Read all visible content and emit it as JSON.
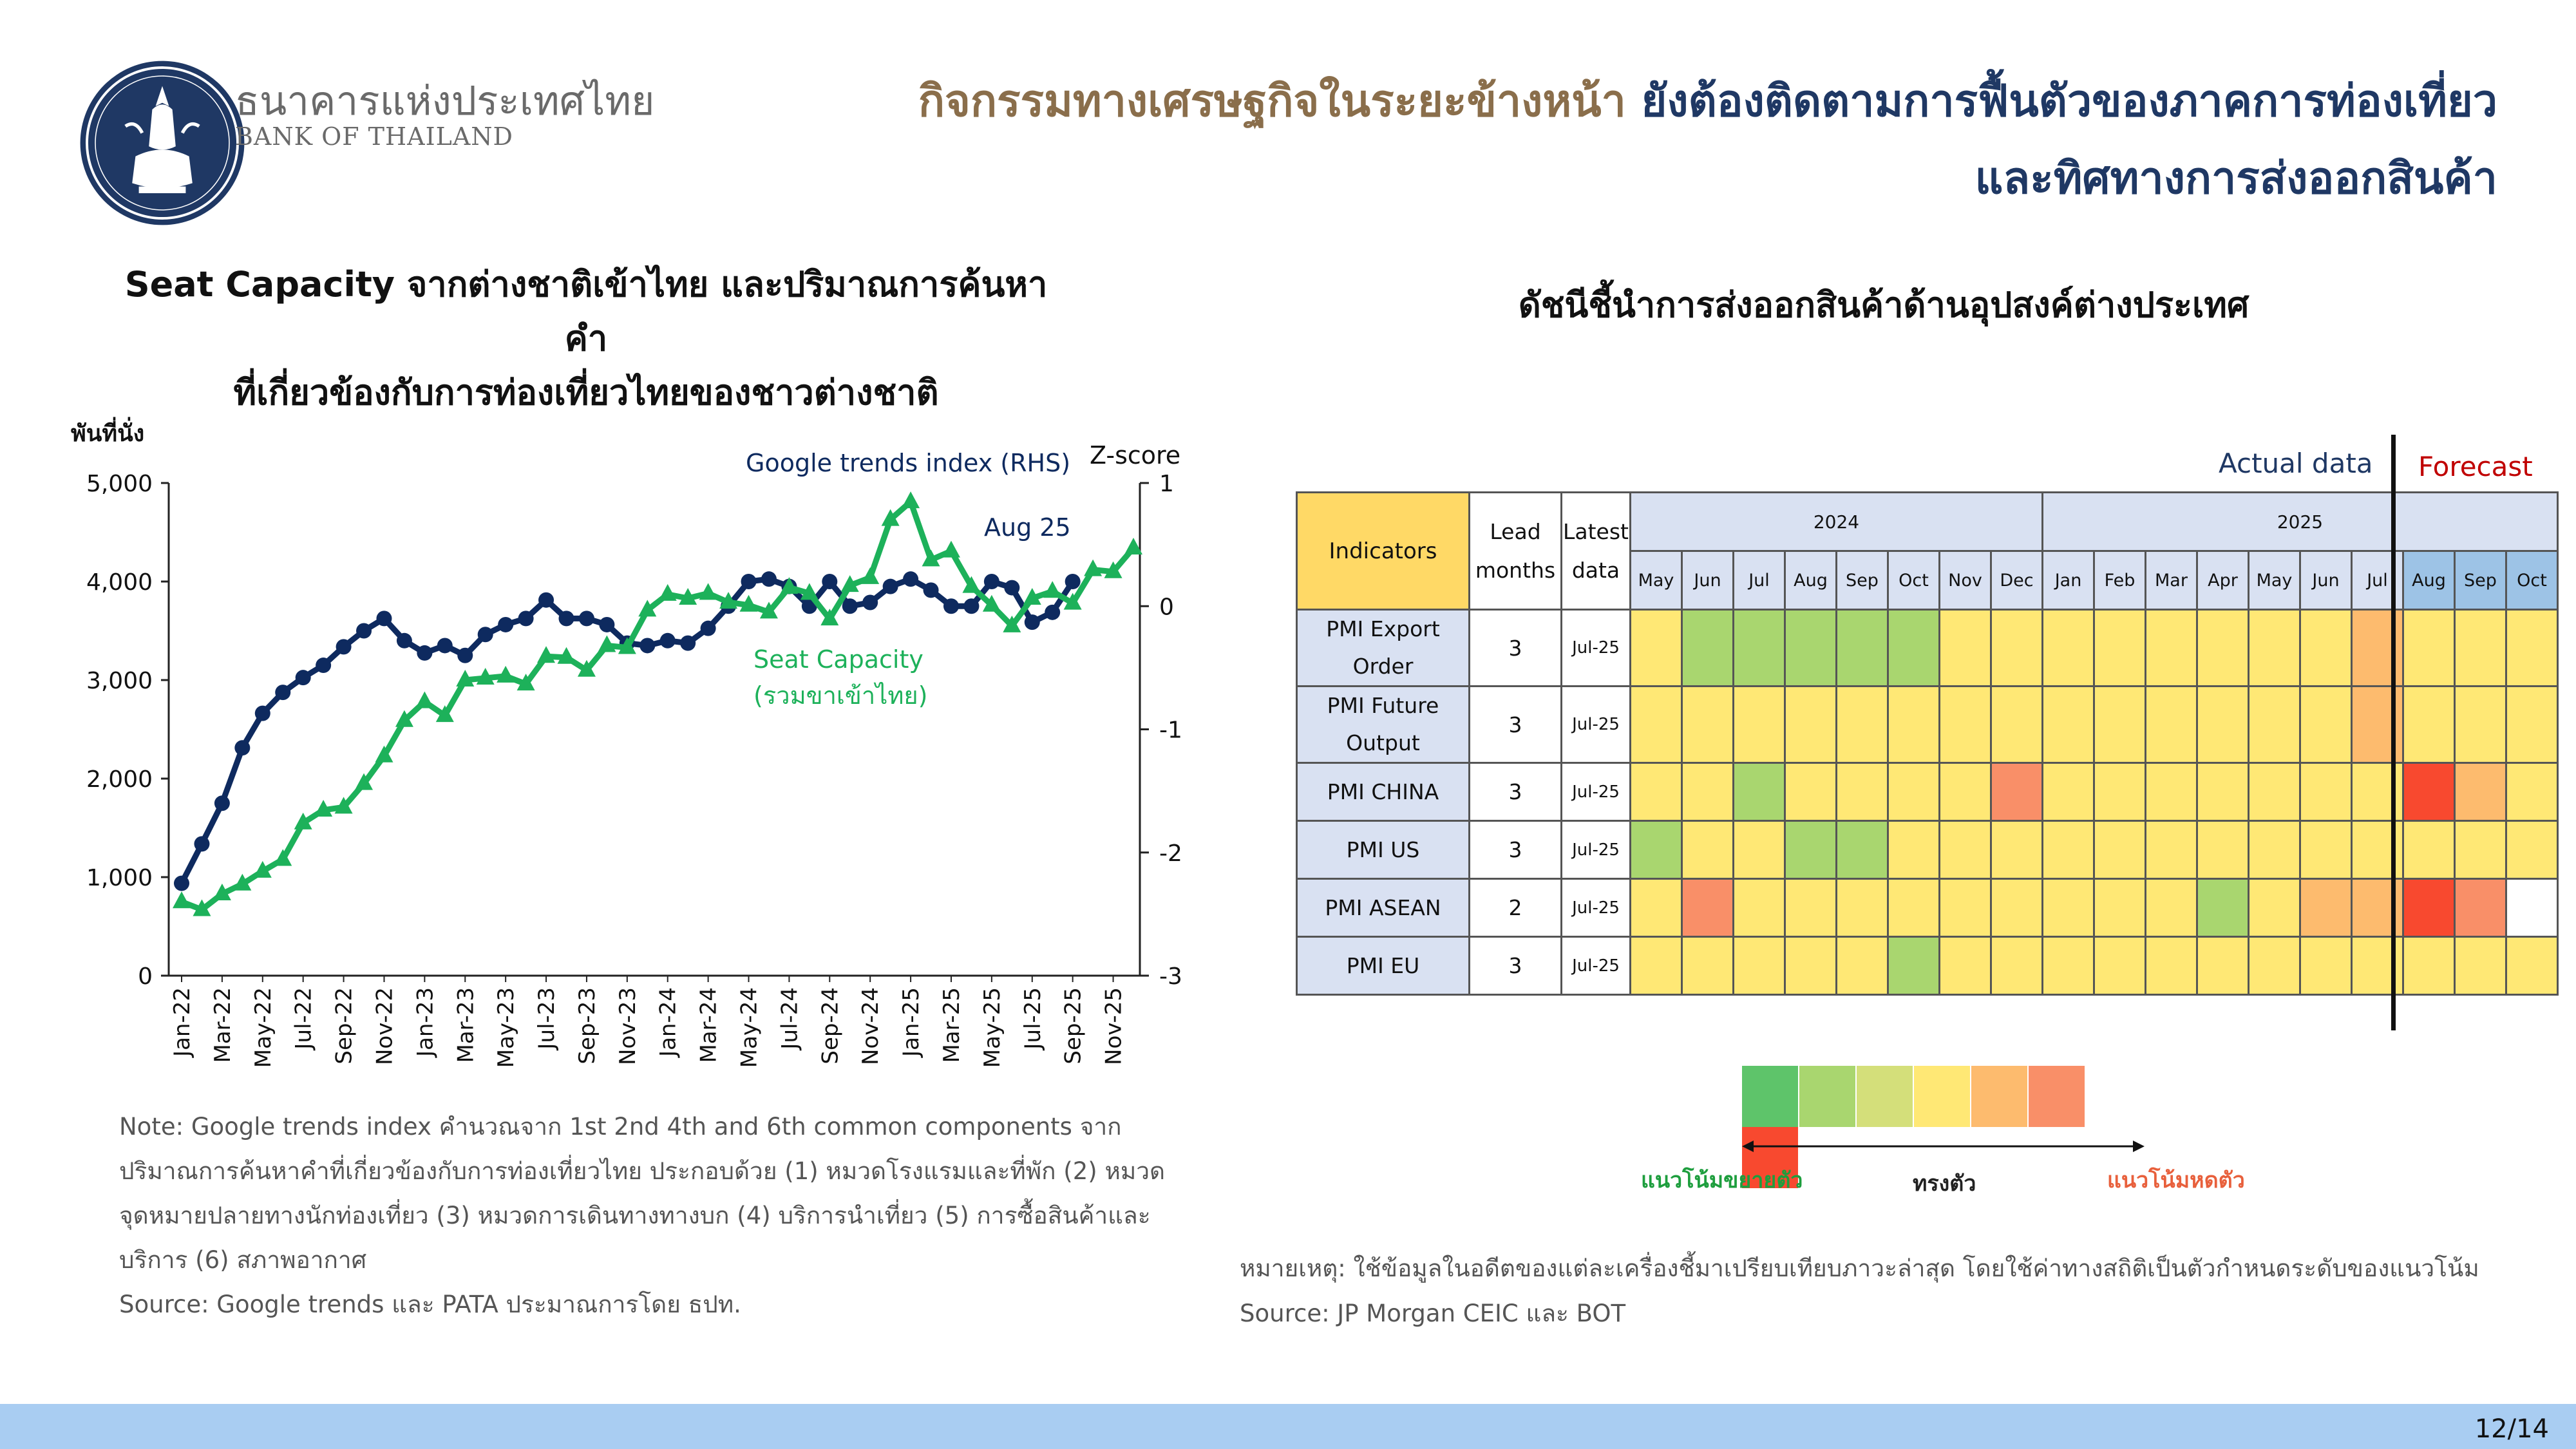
{
  "header": {
    "bank_name_th": "ธนาคารแห่งประเทศไทย",
    "bank_name_en": "BANK OF THAILAND",
    "title_part1": "กิจกรรมทางเศรษฐกิจในระยะข้างหน้า",
    "title_part2": "ยังต้องติดตามการฟื้นตัวของภาคการท่องเที่ยว",
    "title_line2": "และทิศทางการส่งออกสินค้า"
  },
  "colors": {
    "navy": "#1f3864",
    "brown": "#8a6e4b",
    "google_series": "#0e2a5f",
    "seat_series": "#1db15a"
  },
  "left_chart": {
    "title_line1": "Seat Capacity จากต่างชาติเข้าไทย และปริมาณการค้นหาคำ",
    "title_line2": "ที่เกี่ยวข้องกับการท่องเที่ยวไทยของชาวต่างชาติ",
    "note_line1": "Note: Google trends index คำนวณจาก 1st  2nd  4th  and 6th common components จาก",
    "note_line2": "ปริมาณการค้นหาคำที่เกี่ยวข้องกับการท่องเที่ยวไทย ประกอบด้วย (1) หมวดโรงแรมและที่พัก (2) หมวด",
    "note_line3": "จุดหมายปลายทางนักท่องเที่ยว (3) หมวดการเดินทางทางบก (4) บริการนำเที่ยว (5) การซื้อสินค้าและ",
    "note_line4": "บริการ (6) สภาพอากาศ",
    "source": "Source: Google trends และ PATA ประมาณการโดย ธปท."
  },
  "chart_data": {
    "type": "line",
    "ylabel_left": "พันที่นั่ง",
    "ylabel_right": "Z-score",
    "ylim_left": [
      0,
      5000
    ],
    "ylim_right": [
      -3,
      1
    ],
    "yticks_left": [
      "0",
      "1,000",
      "2,000",
      "3,000",
      "4,000",
      "5,000"
    ],
    "yticks_right": [
      "-3",
      "-2",
      "-1",
      "0",
      "1"
    ],
    "x_tick_labels": [
      "Jan-22",
      "Mar-22",
      "May-22",
      "Jul-22",
      "Sep-22",
      "Nov-22",
      "Jan-23",
      "Mar-23",
      "May-23",
      "Jul-23",
      "Sep-23",
      "Nov-23",
      "Jan-24",
      "Mar-24",
      "May-24",
      "Jul-24",
      "Sep-24",
      "Nov-24",
      "Jan-25",
      "Mar-25",
      "May-25",
      "Jul-25",
      "Sep-25",
      "Nov-25"
    ],
    "annotation": "Aug 25",
    "x": [
      "Jan-22",
      "Feb-22",
      "Mar-22",
      "Apr-22",
      "May-22",
      "Jun-22",
      "Jul-22",
      "Aug-22",
      "Sep-22",
      "Oct-22",
      "Nov-22",
      "Dec-22",
      "Jan-23",
      "Feb-23",
      "Mar-23",
      "Apr-23",
      "May-23",
      "Jun-23",
      "Jul-23",
      "Aug-23",
      "Sep-23",
      "Oct-23",
      "Nov-23",
      "Dec-23",
      "Jan-24",
      "Feb-24",
      "Mar-24",
      "Apr-24",
      "May-24",
      "Jun-24",
      "Jul-24",
      "Aug-24",
      "Sep-24",
      "Oct-24",
      "Nov-24",
      "Dec-24",
      "Jan-25",
      "Feb-25",
      "Mar-25",
      "Apr-25",
      "May-25",
      "Jun-25",
      "Jul-25",
      "Aug-25",
      "Sep-25",
      "Oct-25",
      "Nov-25",
      "Dec-25"
    ],
    "series": [
      {
        "name": "Google trends index (RHS)",
        "axis": "right",
        "values": [
          -2.25,
          -1.93,
          -1.6,
          -1.15,
          -0.87,
          -0.7,
          -0.58,
          -0.48,
          -0.33,
          -0.2,
          -0.1,
          -0.28,
          -0.38,
          -0.32,
          -0.4,
          -0.23,
          -0.15,
          -0.1,
          0.05,
          -0.1,
          -0.1,
          -0.15,
          -0.3,
          -0.32,
          -0.28,
          -0.3,
          -0.18,
          0.0,
          0.2,
          0.22,
          0.16,
          0.0,
          0.2,
          0.0,
          0.03,
          0.16,
          0.22,
          0.13,
          0.0,
          0.0,
          0.2,
          0.15,
          -0.13,
          -0.05,
          0.2,
          null,
          null,
          null
        ]
      },
      {
        "name": "Seat Capacity",
        "label_line2": "(รวมขาเข้าไทย)",
        "axis": "left",
        "values": [
          750,
          670,
          830,
          930,
          1060,
          1180,
          1550,
          1680,
          1710,
          1950,
          2230,
          2590,
          2780,
          2640,
          3000,
          3020,
          3040,
          2960,
          3240,
          3230,
          3100,
          3350,
          3330,
          3710,
          3870,
          3830,
          3880,
          3790,
          3760,
          3690,
          3940,
          3880,
          3620,
          3960,
          4040,
          4630,
          4810,
          4220,
          4310,
          3950,
          3760,
          3550,
          3830,
          3900,
          3780,
          4120,
          4100,
          4340
        ]
      }
    ]
  },
  "right_chart": {
    "title": "ดัชนีชี้นำการส่งออกสินค้าด้านอุปสงค์ต่างประเทศ",
    "actual_label": "Actual data",
    "forecast_label": "Forecast",
    "col_indicators": "Indicators",
    "col_lead_1": "Lead",
    "col_lead_2": "months",
    "col_latest_1": "Latest",
    "col_latest_2": "data",
    "years": [
      "2024",
      "2025"
    ],
    "months": [
      "May",
      "Jun",
      "Jul",
      "Aug",
      "Sep",
      "Oct",
      "Nov",
      "Dec",
      "Jan",
      "Feb",
      "Mar",
      "Apr",
      "May",
      "Jun",
      "Jul",
      "Aug",
      "Sep",
      "Oct"
    ],
    "rows": [
      {
        "name_1": "PMI Export",
        "name_2": "Order",
        "lead": "3",
        "latest": "Jul-25",
        "levels": [
          4,
          2,
          2,
          2,
          2,
          2,
          4,
          4,
          4,
          4,
          4,
          4,
          4,
          4,
          5,
          4,
          4,
          4
        ]
      },
      {
        "name_1": "PMI Future",
        "name_2": "Output",
        "lead": "3",
        "latest": "Jul-25",
        "levels": [
          4,
          4,
          4,
          4,
          4,
          4,
          4,
          4,
          4,
          4,
          4,
          4,
          4,
          4,
          5,
          4,
          4,
          4
        ]
      },
      {
        "name_1": "PMI CHINA",
        "name_2": "",
        "lead": "3",
        "latest": "Jul-25",
        "levels": [
          4,
          4,
          2,
          4,
          4,
          4,
          4,
          6,
          4,
          4,
          4,
          4,
          4,
          4,
          4,
          7,
          5,
          4
        ]
      },
      {
        "name_1": "PMI US",
        "name_2": "",
        "lead": "3",
        "latest": "Jul-25",
        "levels": [
          2,
          4,
          4,
          2,
          2,
          4,
          4,
          4,
          4,
          4,
          4,
          4,
          4,
          4,
          4,
          4,
          4,
          4
        ]
      },
      {
        "name_1": "PMI ASEAN",
        "name_2": "",
        "lead": "2",
        "latest": "Jul-25",
        "levels": [
          4,
          6,
          4,
          4,
          4,
          4,
          4,
          4,
          4,
          4,
          4,
          2,
          4,
          5,
          5,
          7,
          6,
          0
        ]
      },
      {
        "name_1": "PMI EU",
        "name_2": "",
        "lead": "3",
        "latest": "Jul-25",
        "levels": [
          4,
          4,
          4,
          4,
          4,
          2,
          4,
          4,
          4,
          4,
          4,
          4,
          4,
          4,
          4,
          4,
          4,
          4
        ]
      }
    ],
    "level_colors": [
      "#ffffff",
      "#5ec46a",
      "#a9d66f",
      "#d4df7a",
      "#ffe875",
      "#fdbb6e",
      "#f98f68",
      "#f8492f"
    ],
    "legend_expansion": "แนวโน้มขยายตัว",
    "legend_stable": "ทรงตัว",
    "legend_contraction": "แนวโน้มหดตัว",
    "note": "หมายเหตุ: ใช้ข้อมูลในอดีตของแต่ละเครื่องชี้มาเปรียบเทียบภาวะล่าสุด โดยใช้ค่าทางสถิติเป็นตัวกำหนดระดับของแนวโน้ม",
    "source": "Source: JP Morgan CEIC และ BOT"
  },
  "footer": {
    "page": "12/14"
  }
}
